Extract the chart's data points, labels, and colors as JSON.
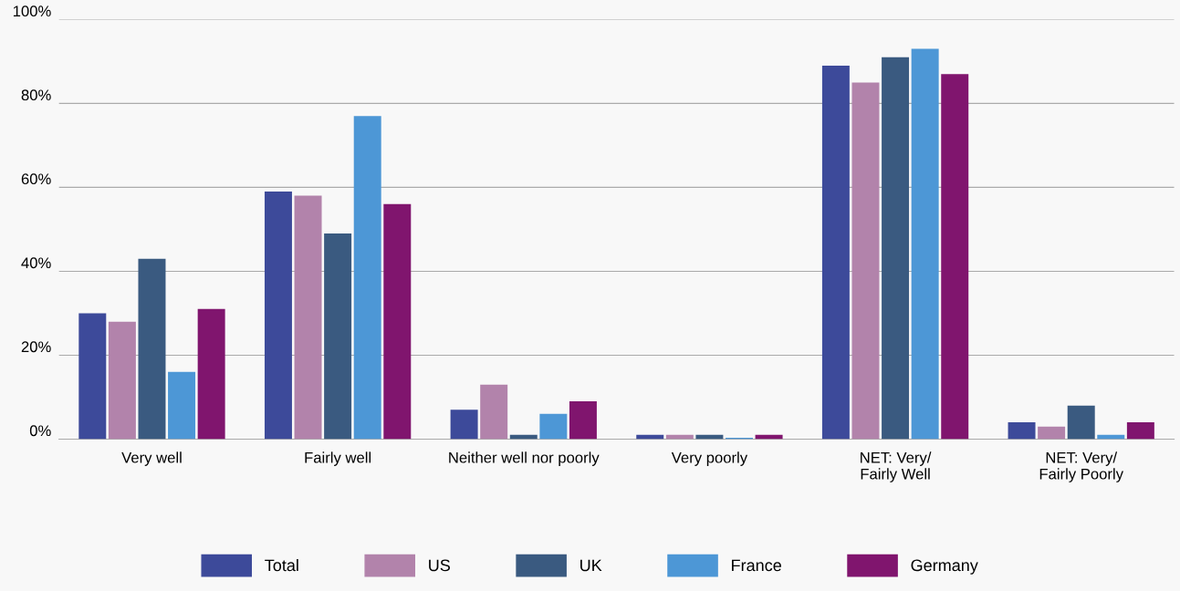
{
  "chart_data": {
    "type": "bar",
    "categories": [
      "Very well",
      "Fairly well",
      "Neither well nor poorly",
      "Very poorly",
      "NET: Very/\nFairly Well",
      "NET: Very/\nFairly Poorly"
    ],
    "series": [
      {
        "name": "Total",
        "color": "#3d4a9a",
        "values": [
          30,
          59,
          7,
          1,
          89,
          4
        ]
      },
      {
        "name": "US",
        "color": "#b283ab",
        "values": [
          28,
          58,
          13,
          1,
          85,
          3
        ]
      },
      {
        "name": "UK",
        "color": "#3a5a80",
        "values": [
          43,
          49,
          1,
          1,
          91,
          8
        ]
      },
      {
        "name": "France",
        "color": "#4d97d6",
        "values": [
          16,
          77,
          6,
          0.3,
          93,
          1
        ]
      },
      {
        "name": "Germany",
        "color": "#80156e",
        "values": [
          31,
          56,
          9,
          1,
          87,
          4
        ]
      }
    ],
    "ylim": [
      0,
      100
    ],
    "yticks": [
      {
        "value": 0,
        "label": "0%"
      },
      {
        "value": 20,
        "label": "20%"
      },
      {
        "value": 40,
        "label": "40%"
      },
      {
        "value": 60,
        "label": "60%"
      },
      {
        "value": 80,
        "label": "80%"
      },
      {
        "value": 100,
        "label": "100%"
      }
    ],
    "grid": "y",
    "legend": "bottom"
  }
}
